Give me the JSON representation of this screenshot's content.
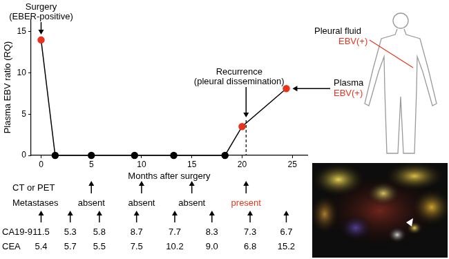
{
  "chart_data": {
    "type": "line",
    "x_label": "Months after surgery",
    "y_label": "Plasma EBV ratio (RQ)",
    "x": [
      0,
      1.4,
      5,
      9.3,
      13.2,
      18.3,
      20,
      24.4
    ],
    "values": [
      14,
      0,
      0,
      0,
      0,
      0,
      3.5,
      8.1
    ],
    "color": "#000000",
    "colors": [
      "#e8341c",
      "#000000",
      "#000000",
      "#000000",
      "#000000",
      "#000000",
      "#e8341c",
      "#e8341c"
    ],
    "marker": "circle",
    "xlim": [
      -1,
      26.5
    ],
    "xticks": [
      0,
      5,
      10,
      15,
      20,
      25
    ],
    "ylim": [
      0,
      16.5
    ],
    "yticks": [
      0,
      5,
      10,
      15
    ],
    "grid": false,
    "annotations": [
      {
        "lines": [
          "Surgery",
          "(EBER-positive)"
        ],
        "x": 0
      },
      {
        "lines": [
          "Recurrence",
          "(pleural dissemination)"
        ],
        "x": 20.4,
        "line_style": "dashed"
      }
    ]
  },
  "imaging": {
    "label": "CT or PET",
    "row_label": "Metastases",
    "x": [
      5,
      10,
      15,
      20.4
    ],
    "results": [
      "absent",
      "absent",
      "absent",
      "present"
    ],
    "result_colors": [
      "#000000",
      "#000000",
      "#000000",
      "#e8341c"
    ]
  },
  "tumor_markers": {
    "x": [
      0,
      2.9,
      5.8,
      9.5,
      13.3,
      17,
      20.8,
      24.4
    ],
    "rows": [
      {
        "label": "CA19-9",
        "values": [
          11.5,
          5.3,
          5.8,
          8.7,
          7.7,
          8.3,
          7.3,
          6.7
        ],
        "value_labels": [
          "11.5",
          "5.3",
          "5.8",
          "8.7",
          "7.7",
          "8.3",
          "7.3",
          "6.7"
        ]
      },
      {
        "label": "CEA",
        "values": [
          5.4,
          5.7,
          5.5,
          7.5,
          10.2,
          9.0,
          6.8,
          15.2
        ],
        "value_labels": [
          "5.4",
          "5.7",
          "5.5",
          "7.5",
          "10.2",
          "9.0",
          "6.8",
          "15.2"
        ]
      }
    ]
  },
  "specimens": {
    "items": [
      {
        "label": "Pleural fluid",
        "result": "EBV(+)"
      },
      {
        "label": "Plasma",
        "result": "EBV(+)"
      }
    ],
    "result_color": "#e8341c"
  }
}
